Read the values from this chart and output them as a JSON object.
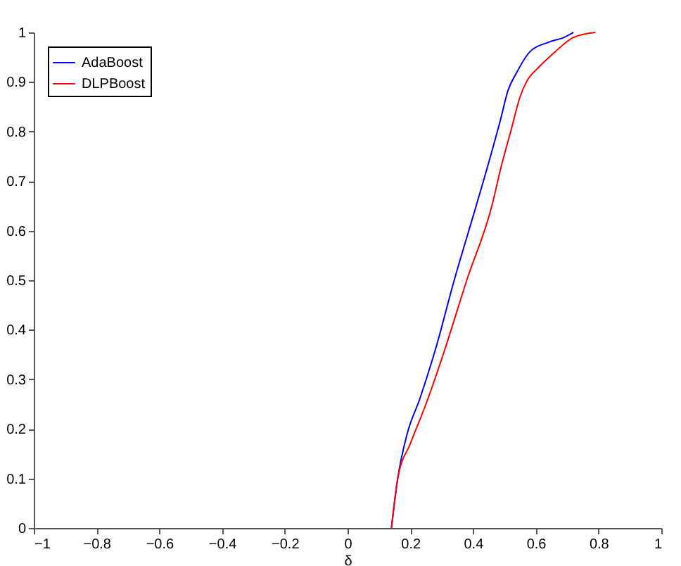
{
  "chart_data": {
    "type": "line",
    "xlabel": "δ",
    "xlim": [
      -1,
      1
    ],
    "ylim": [
      0,
      1
    ],
    "xticks": [
      -1,
      -0.8,
      -0.6,
      -0.4,
      -0.2,
      0,
      0.2,
      0.4,
      0.6,
      0.8,
      1
    ],
    "yticks": [
      0,
      0.1,
      0.2,
      0.3,
      0.4,
      0.5,
      0.6,
      0.7,
      0.8,
      0.9,
      1
    ],
    "grid": false,
    "legend": "top left",
    "marker": "none",
    "line_style": "solid",
    "series": [
      {
        "name": "AdaBoost",
        "color": "#0000ff",
        "x": [
          0.14,
          0.16,
          0.19,
          0.23,
          0.28,
          0.34,
          0.41,
          0.46,
          0.49,
          0.51,
          0.54,
          0.58,
          0.64,
          0.69,
          0.72
        ],
        "values": [
          0,
          0.1,
          0.19,
          0.26,
          0.36,
          0.5,
          0.65,
          0.76,
          0.83,
          0.88,
          0.92,
          0.96,
          0.98,
          0.99,
          1
        ]
      },
      {
        "name": "DLPBoost",
        "color": "#ff0000",
        "x": [
          0.14,
          0.16,
          0.2,
          0.25,
          0.31,
          0.38,
          0.46,
          0.49,
          0.52,
          0.55,
          0.57,
          0.61,
          0.66,
          0.72,
          0.79
        ],
        "values": [
          0,
          0.1,
          0.17,
          0.25,
          0.36,
          0.5,
          0.65,
          0.73,
          0.8,
          0.87,
          0.9,
          0.93,
          0.96,
          0.99,
          1
        ]
      }
    ]
  }
}
